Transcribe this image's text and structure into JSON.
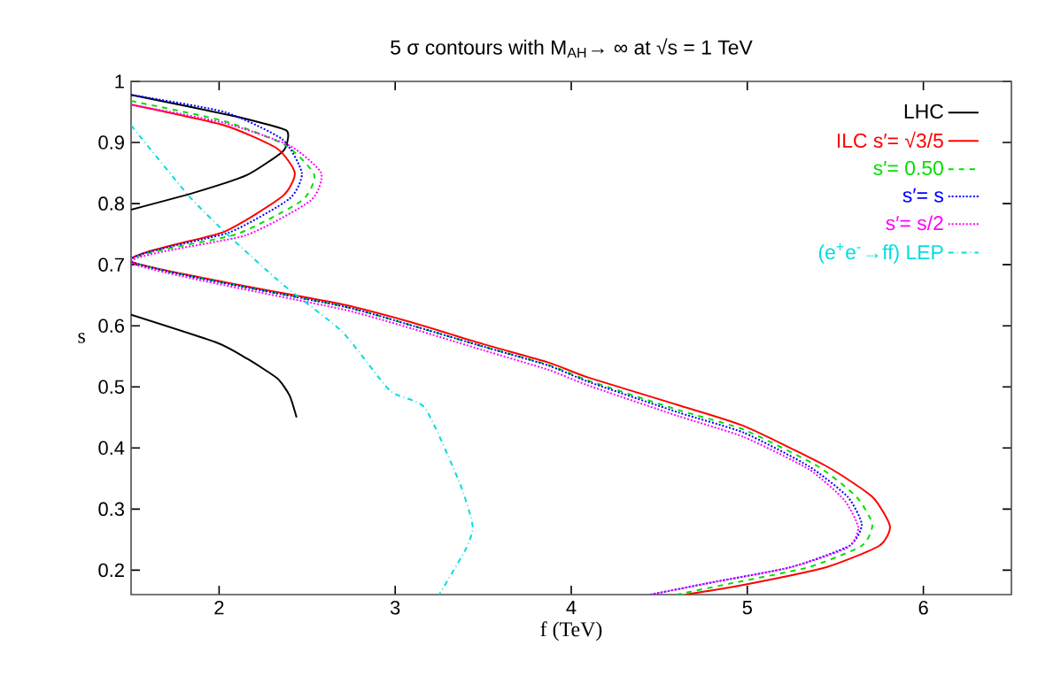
{
  "chart_data": {
    "type": "line",
    "title": "5 σ contours with M$_{AH}$→ ∞ at √s = 1 TeV",
    "xlabel": "f (TeV)",
    "ylabel": "s",
    "xlim": [
      1.5,
      6.5
    ],
    "ylim": [
      0.16,
      1
    ],
    "xticks": [
      2,
      3,
      4,
      5,
      6
    ],
    "yticks": [
      0.2,
      0.3,
      0.4,
      0.5,
      0.6,
      0.7,
      0.8,
      0.9,
      1
    ],
    "legend": "top right",
    "grid": false,
    "marker": "none",
    "series": [
      {
        "name": "LHC",
        "color": "#000000",
        "line_style": "solid",
        "x": [
          1.5,
          1.86,
          2.19,
          2.38,
          2.39,
          2.36,
          2.16,
          1.86,
          1.5
        ],
        "values": [
          0.978,
          0.957,
          0.936,
          0.92,
          0.905,
          0.885,
          0.847,
          0.818,
          0.79
        ]
      },
      {
        "color": "#000000",
        "line_style": "solid",
        "x": [
          1.5,
          1.99,
          2.16,
          2.33,
          2.4,
          2.44
        ],
        "values": [
          0.618,
          0.572,
          0.546,
          0.514,
          0.486,
          0.45
        ]
      },
      {
        "name": "ILC s′= √3/5",
        "color": "#ff0000",
        "line_style": "solid",
        "x": [
          1.5,
          2.03,
          2.33,
          2.43,
          2.36,
          2.03,
          1.5,
          2.7,
          3.1,
          3.5,
          3.87,
          4.1,
          4.61,
          4.98,
          5.45,
          5.71,
          5.81,
          5.75,
          5.45,
          4.98,
          4.65
        ],
        "values": [
          0.962,
          0.928,
          0.89,
          0.85,
          0.812,
          0.754,
          0.705,
          0.635,
          0.605,
          0.57,
          0.54,
          0.515,
          0.47,
          0.436,
          0.37,
          0.32,
          0.272,
          0.24,
          0.205,
          0.176,
          0.16
        ]
      },
      {
        "name": "s′= 0.50",
        "color": "#00e000",
        "line_style": "dashed",
        "x": [
          1.5,
          2.03,
          2.38,
          2.54,
          2.47,
          2.1,
          1.5,
          2.7,
          3.1,
          3.5,
          3.87,
          4.1,
          4.61,
          4.98,
          5.4,
          5.62,
          5.71,
          5.65,
          5.35,
          4.9,
          4.6
        ],
        "values": [
          0.968,
          0.935,
          0.895,
          0.847,
          0.805,
          0.75,
          0.705,
          0.632,
          0.6,
          0.566,
          0.536,
          0.51,
          0.462,
          0.43,
          0.37,
          0.32,
          0.275,
          0.24,
          0.205,
          0.178,
          0.16
        ]
      },
      {
        "name": "s′= s",
        "color": "#0000ff",
        "line_style": "dotted",
        "x": [
          1.5,
          2.03,
          2.36,
          2.47,
          2.4,
          2.06,
          1.5,
          2.7,
          3.1,
          3.5,
          3.87,
          4.1,
          4.61,
          4.98,
          5.35,
          5.57,
          5.65,
          5.58,
          5.25,
          4.8,
          4.45
        ],
        "values": [
          0.978,
          0.95,
          0.905,
          0.85,
          0.808,
          0.753,
          0.705,
          0.632,
          0.6,
          0.566,
          0.535,
          0.508,
          0.458,
          0.425,
          0.37,
          0.32,
          0.275,
          0.24,
          0.205,
          0.18,
          0.16
        ]
      },
      {
        "name": "s′= s/2",
        "color": "#ff00ff",
        "line_style": "dotted",
        "x": [
          1.5,
          2.03,
          2.4,
          2.58,
          2.52,
          2.15,
          1.5,
          2.7,
          3.1,
          3.5,
          3.87,
          4.1,
          4.61,
          4.98,
          5.35,
          5.55,
          5.63,
          5.57,
          5.25,
          4.8,
          4.45
        ],
        "values": [
          0.962,
          0.932,
          0.895,
          0.85,
          0.805,
          0.748,
          0.703,
          0.627,
          0.595,
          0.56,
          0.528,
          0.502,
          0.452,
          0.418,
          0.365,
          0.315,
          0.27,
          0.237,
          0.205,
          0.18,
          0.16
        ]
      },
      {
        "name": "(e$^{+}$e$^{-}$→ff) LEP",
        "color": "#00dddd",
        "line_style": "dashdot",
        "x": [
          1.5,
          1.83,
          2.06,
          2.36,
          2.7,
          2.97,
          3.17,
          3.37,
          3.44,
          3.4,
          3.25
        ],
        "values": [
          0.928,
          0.812,
          0.746,
          0.668,
          0.59,
          0.494,
          0.465,
          0.34,
          0.272,
          0.234,
          0.16
        ]
      }
    ]
  }
}
